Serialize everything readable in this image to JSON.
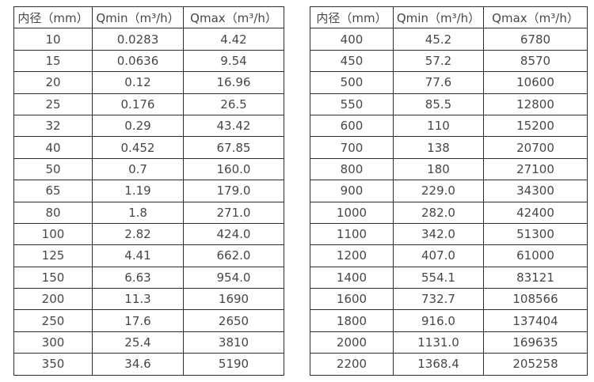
{
  "colors": {
    "background": "#ffffff",
    "border": "#2e2e2e",
    "text": "#474747"
  },
  "left_table": {
    "headers": [
      "内径（mm）",
      "Qmin（m³/h）",
      "Qmax（m³/h）"
    ],
    "rows": [
      [
        "10",
        "0.0283",
        "4.42"
      ],
      [
        "15",
        "0.0636",
        "9.54"
      ],
      [
        "20",
        "0.12",
        "16.96"
      ],
      [
        "25",
        "0.176",
        "26.5"
      ],
      [
        "32",
        "0.29",
        "43.42"
      ],
      [
        "40",
        "0.452",
        "67.85"
      ],
      [
        "50",
        "0.7",
        "160.0"
      ],
      [
        "65",
        "1.19",
        "179.0"
      ],
      [
        "80",
        "1.8",
        "271.0"
      ],
      [
        "100",
        "2.82",
        "424.0"
      ],
      [
        "125",
        "4.41",
        "662.0"
      ],
      [
        "150",
        "6.63",
        "954.0"
      ],
      [
        "200",
        "11.3",
        "1690"
      ],
      [
        "250",
        "17.6",
        "2650"
      ],
      [
        "300",
        "25.4",
        "3810"
      ],
      [
        "350",
        "34.6",
        "5190"
      ]
    ]
  },
  "right_table": {
    "headers": [
      "内径（mm）",
      "Qmin（m³/h）",
      "Qmax（m³/h）"
    ],
    "rows": [
      [
        "400",
        "45.2",
        "6780"
      ],
      [
        "450",
        "57.2",
        "8570"
      ],
      [
        "500",
        "77.6",
        "10600"
      ],
      [
        "550",
        "85.5",
        "12800"
      ],
      [
        "600",
        "110",
        "15200"
      ],
      [
        "700",
        "138",
        "20700"
      ],
      [
        "800",
        "180",
        "27100"
      ],
      [
        "900",
        "229.0",
        "34300"
      ],
      [
        "1000",
        "282.0",
        "42400"
      ],
      [
        "1100",
        "342.0",
        "51300"
      ],
      [
        "1200",
        "407.0",
        "61000"
      ],
      [
        "1400",
        "554.1",
        "83121"
      ],
      [
        "1600",
        "732.7",
        "108566"
      ],
      [
        "1800",
        "916.0",
        "137404"
      ],
      [
        "2000",
        "1131.0",
        "169635"
      ],
      [
        "2200",
        "1368.4",
        "205258"
      ]
    ]
  }
}
